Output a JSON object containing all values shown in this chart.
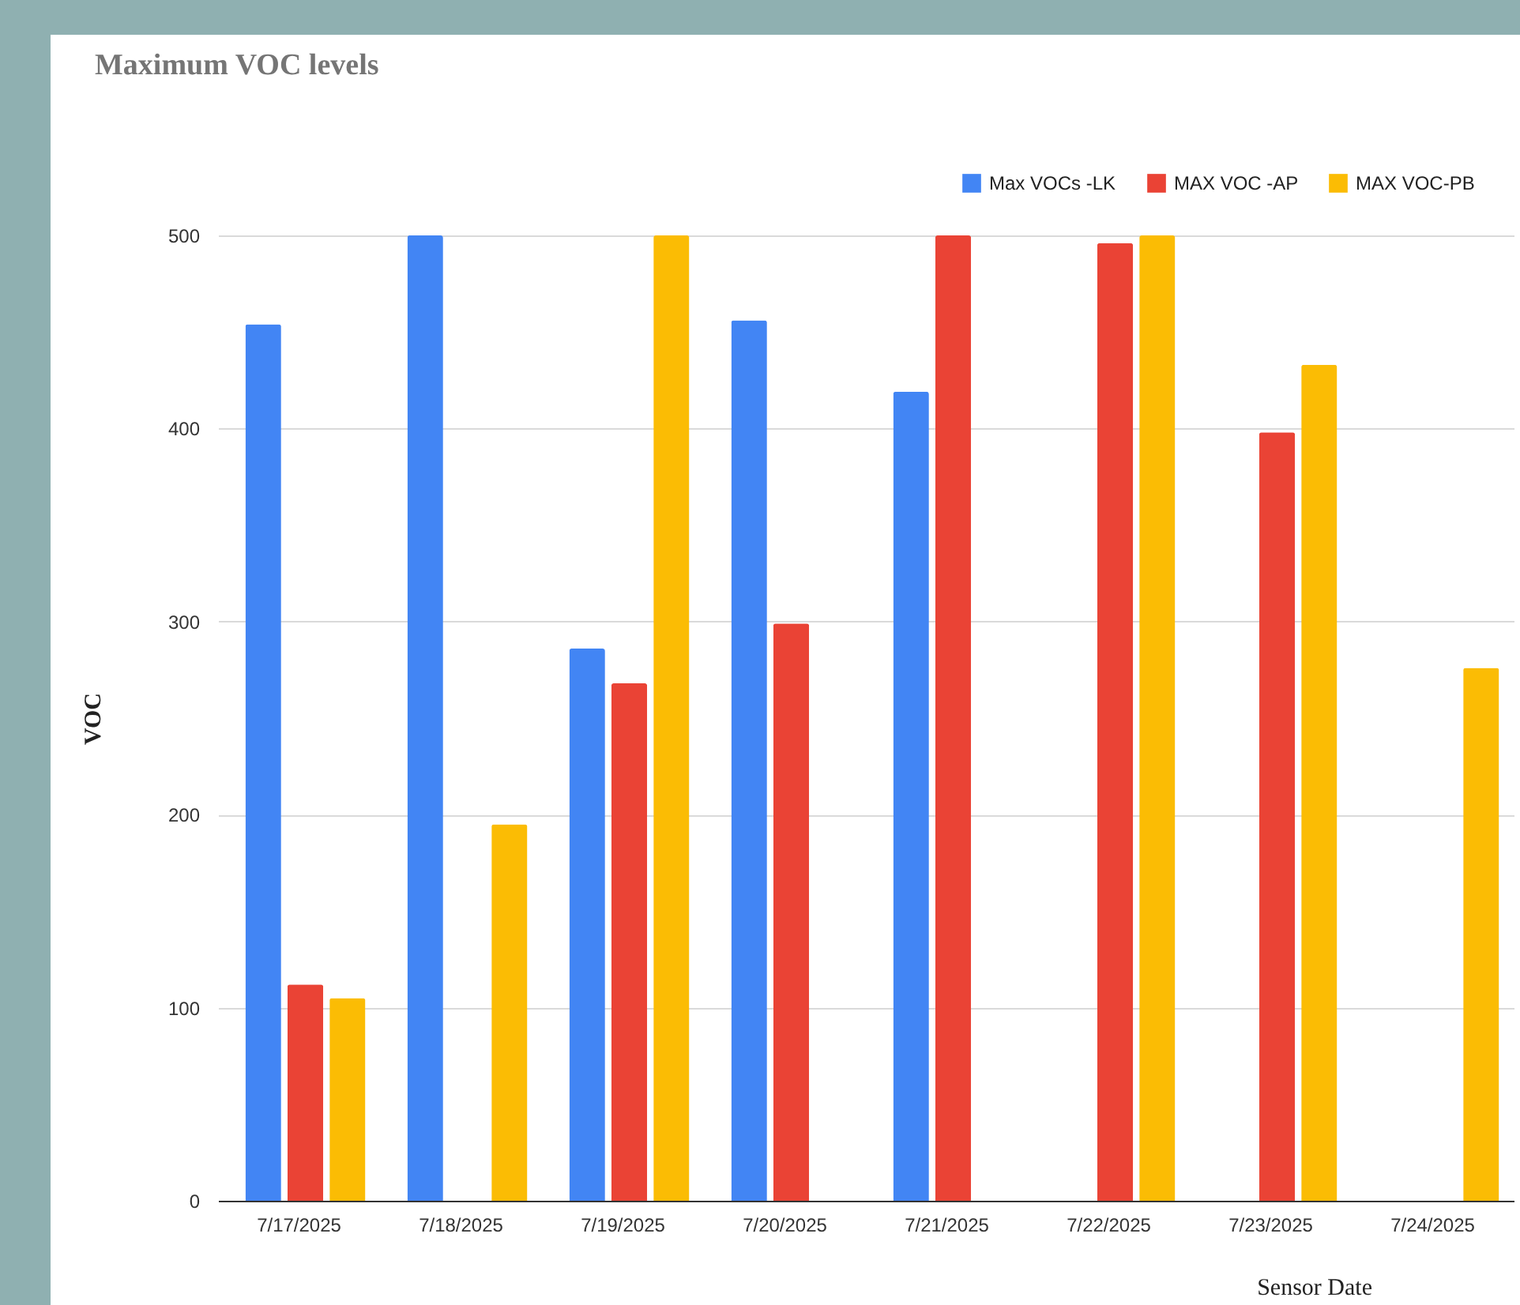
{
  "chart_data": {
    "type": "bar",
    "title": "Maximum VOC levels",
    "xlabel": "Sensor Date",
    "ylabel": "VOC",
    "categories": [
      "7/17/2025",
      "7/18/2025",
      "7/19/2025",
      "7/20/2025",
      "7/21/2025",
      "7/22/2025",
      "7/23/2025",
      "7/24/2025"
    ],
    "series": [
      {
        "name": "Max VOCs -LK",
        "color": "#4285f4",
        "values": [
          454,
          500,
          286,
          456,
          419,
          null,
          null,
          null
        ]
      },
      {
        "name": "MAX VOC -AP",
        "color": "#ea4335",
        "values": [
          112,
          null,
          268,
          299,
          500,
          496,
          398,
          null
        ]
      },
      {
        "name": "MAX VOC-PB",
        "color": "#fbbc04",
        "values": [
          105,
          195,
          500,
          null,
          null,
          500,
          433,
          276
        ]
      }
    ],
    "ylim": [
      0,
      500
    ],
    "yticks": [
      0,
      100,
      200,
      300,
      400,
      500
    ],
    "grid": "y",
    "legend": "top right"
  }
}
